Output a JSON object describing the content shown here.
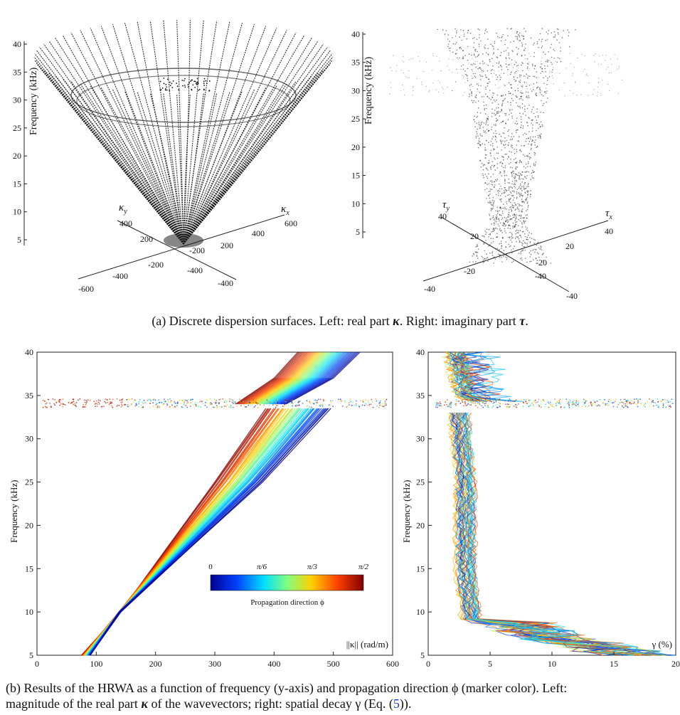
{
  "top_left": {
    "zlabel": "Frequency (kHz)",
    "zticks": [
      "40",
      "35",
      "30",
      "25",
      "20",
      "15",
      "10",
      "5"
    ],
    "kx_label": "κ",
    "kx_sub": "x",
    "ky_label": "κ",
    "ky_sub": "y",
    "kx_ticks": [
      "-400",
      "-200",
      "200",
      "400",
      "600"
    ],
    "ky_ticks": [
      "-600",
      "-400",
      "-200",
      "200",
      "400"
    ]
  },
  "top_right": {
    "zlabel": "Frequency (kHz)",
    "zticks": [
      "40",
      "35",
      "30",
      "25",
      "20",
      "15",
      "10",
      "5"
    ],
    "tx_label": "τ",
    "tx_sub": "x",
    "ty_label": "τ",
    "ty_sub": "y",
    "tx_ticks": [
      "-40",
      "-20",
      "20",
      "40"
    ],
    "ty_ticks": [
      "-40",
      "-20",
      "20",
      "40"
    ]
  },
  "caption_a": {
    "prefix": "(a) Discrete dispersion surfaces. Left: real part ",
    "sym1": "κ",
    "middle": ". Right: imaginary part ",
    "sym2": "τ",
    "suffix": "."
  },
  "colorbar": {
    "ticks": [
      "0",
      "π/6",
      "π/3",
      "π/2"
    ],
    "label": "Propagation direction ϕ",
    "colors": [
      "#00008f",
      "#0040ff",
      "#00e0ff",
      "#80ff80",
      "#ffd000",
      "#ff4000",
      "#800000"
    ]
  },
  "chart_data": [
    {
      "type": "line",
      "title": "",
      "xlabel": "||κ|| (rad/m)",
      "ylabel": "Frequency (kHz)",
      "xlim": [
        0,
        600
      ],
      "ylim": [
        5,
        40
      ],
      "xticks": [
        "0",
        "100",
        "200",
        "300",
        "400",
        "500",
        "600"
      ],
      "yticks": [
        "5",
        "10",
        "15",
        "20",
        "25",
        "30",
        "35",
        "40"
      ],
      "series": [
        {
          "values": [
            [
              75,
              5
            ],
            [
              140,
              10
            ],
            [
              300,
              25
            ],
            [
              385,
              33.5
            ]
          ]
        },
        {
          "values": [
            [
              90,
              5
            ],
            [
              140,
              10
            ],
            [
              380,
              25
            ],
            [
              495,
              33.5
            ]
          ]
        },
        {
          "values": [
            [
              335,
              34
            ],
            [
              400,
              37
            ],
            [
              440,
              40
            ]
          ]
        },
        {
          "values": [
            [
              420,
              34
            ],
            [
              500,
              37
            ],
            [
              545,
              40
            ]
          ]
        }
      ]
    },
    {
      "type": "line",
      "title": "",
      "xlabel": "γ (%)",
      "ylabel": "Frequency (kHz)",
      "xlim": [
        0,
        20
      ],
      "ylim": [
        5,
        40
      ],
      "xticks": [
        "0",
        "5",
        "10",
        "15",
        "20"
      ],
      "yticks": [
        "5",
        "10",
        "15",
        "20",
        "25",
        "30",
        "35",
        "40"
      ],
      "series": [
        {
          "values": [
            [
              14,
              5
            ],
            [
              7,
              7
            ],
            [
              3.5,
              9
            ],
            [
              3,
              15
            ],
            [
              3,
              25
            ],
            [
              2.5,
              33
            ]
          ]
        },
        {
          "values": [
            [
              3,
              35
            ],
            [
              2.5,
              37
            ],
            [
              2,
              40
            ]
          ]
        }
      ]
    }
  ],
  "caption_b": {
    "line1": "(b) Results of the HRWA as a function of frequency (y-axis) and propagation direction ϕ (marker color).  Left:",
    "line2_prefix": "magnitude of the real part ",
    "line2_sym": "κ",
    "line2_middle": " of the wavevectors; right:  spatial decay γ (Eq. (",
    "line2_ref": "5",
    "line2_suffix": "))."
  }
}
